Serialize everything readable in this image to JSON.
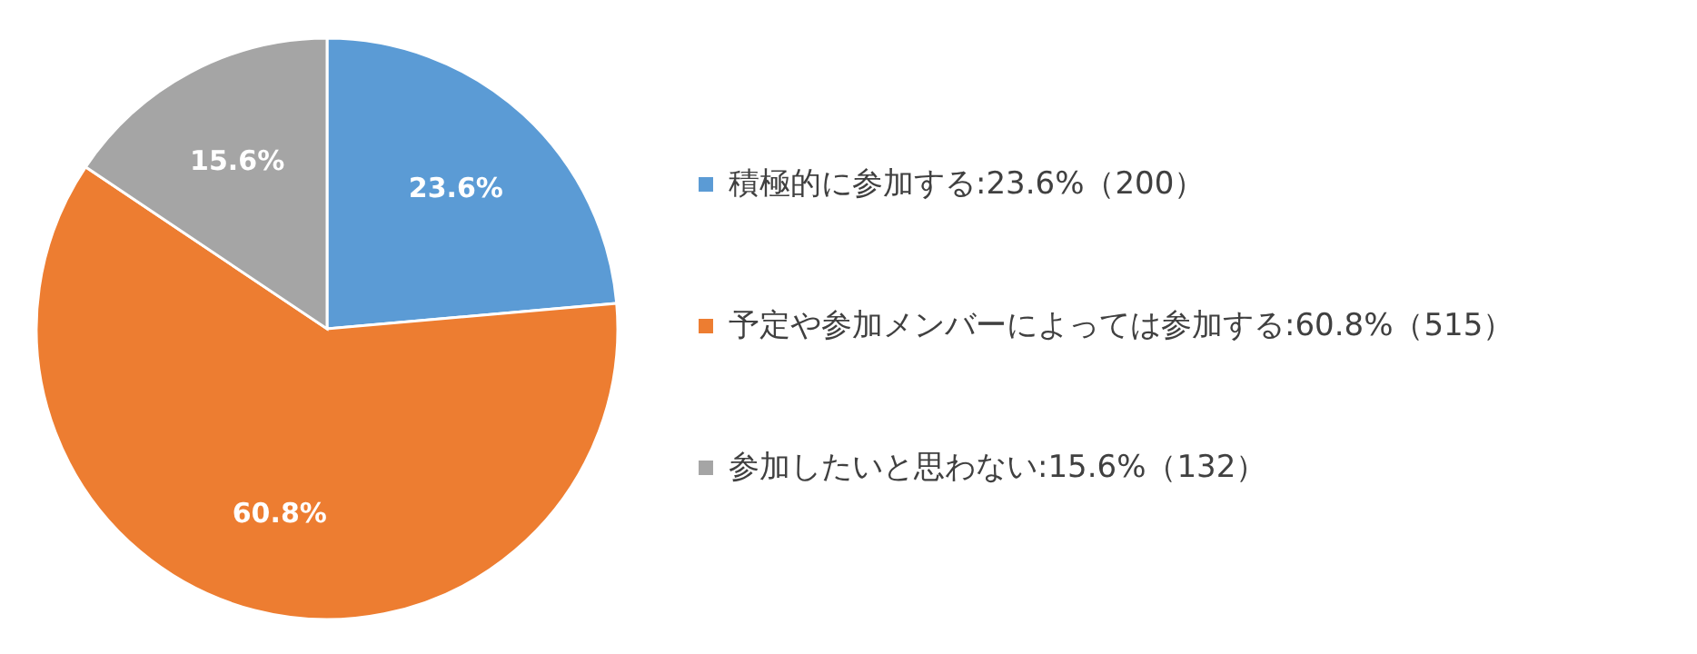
{
  "chart_data": {
    "type": "pie",
    "categories": [
      "積極的に参加する:23.6%（200）",
      "予定や参加メンバーによっては参加する:60.8%（515）",
      "参加したいと思わない:15.6%（132）"
    ],
    "values": [
      23.6,
      60.8,
      15.6
    ],
    "colors": [
      "#5b9bd5",
      "#ed7d31",
      "#a5a5a5"
    ],
    "value_labels": [
      "23.6%",
      "60.8%",
      "15.6%"
    ],
    "legend": "right"
  }
}
